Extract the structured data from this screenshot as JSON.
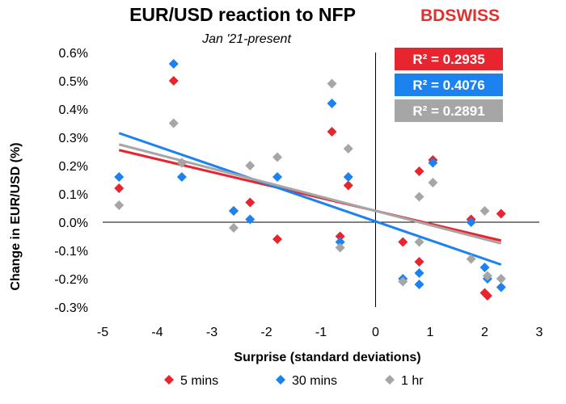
{
  "brand": {
    "part1": "BD",
    "part2": "SWISS",
    "color": "#e03030"
  },
  "chart_data": {
    "type": "scatter",
    "title": "EUR/USD reaction to NFP",
    "subtitle": "Jan '21-present",
    "xlabel": "Surprise (standard deviations)",
    "ylabel": "Change in EUR/USD  (%)",
    "xlim": [
      -5,
      3
    ],
    "ylim": [
      -0.3,
      0.6
    ],
    "xticks": [
      "-5",
      "-4",
      "-3",
      "-2",
      "-1",
      "0",
      "1",
      "2",
      "3"
    ],
    "yticks": [
      "0.6%",
      "0.5%",
      "0.4%",
      "0.3%",
      "0.2%",
      "0.1%",
      "0.0%",
      "-0.1%",
      "-0.2%",
      "-0.3%"
    ],
    "x_values": [
      -4.7,
      -3.7,
      -3.55,
      -2.6,
      -2.3,
      -1.8,
      -0.8,
      -0.65,
      -0.5,
      0.5,
      0.8,
      0.8,
      1.05,
      1.75,
      2.0,
      2.05,
      2.3
    ],
    "series": [
      {
        "name": "5 mins",
        "color": "#e8242f",
        "values": [
          0.12,
          0.5,
          0.21,
          0.04,
          0.07,
          -0.06,
          0.32,
          -0.05,
          0.13,
          -0.07,
          -0.14,
          0.18,
          0.22,
          0.01,
          -0.25,
          -0.26,
          0.03
        ],
        "trendline": {
          "x": [
            -4.7,
            2.3
          ],
          "y": [
            0.255,
            -0.065
          ],
          "r2_label": "R² = 0.2935"
        }
      },
      {
        "name": "30 mins",
        "color": "#1c82f0",
        "values": [
          0.16,
          0.56,
          0.16,
          0.04,
          0.01,
          0.16,
          0.42,
          -0.07,
          0.16,
          -0.2,
          -0.18,
          -0.22,
          0.21,
          0.0,
          -0.16,
          -0.2,
          -0.23
        ],
        "trendline": {
          "x": [
            -4.7,
            2.3
          ],
          "y": [
            0.315,
            -0.15
          ],
          "r2_label": "R² = 0.4076"
        }
      },
      {
        "name": "1 hr",
        "color": "#a6a6a6",
        "values": [
          0.06,
          0.35,
          0.21,
          -0.02,
          0.2,
          0.23,
          0.49,
          -0.09,
          0.26,
          -0.21,
          -0.07,
          0.09,
          0.14,
          -0.13,
          0.04,
          -0.19,
          -0.2
        ],
        "trendline": {
          "x": [
            -4.7,
            2.3
          ],
          "y": [
            0.275,
            -0.075
          ],
          "r2_label": "R² = 0.2891"
        }
      }
    ],
    "legend_position": "bottom"
  }
}
